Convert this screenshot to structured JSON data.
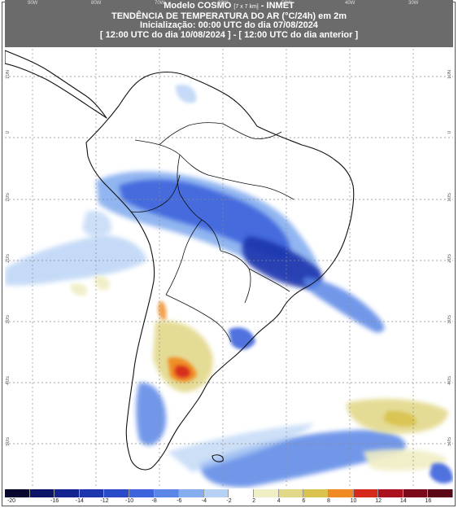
{
  "header": {
    "model": "Modelo COSMO",
    "resolution": "[7 x 7 km]",
    "agency": " - INMET",
    "title": "TENDÊNCIA DE TEMPERATURA DO AR (°C/24h) em 2m",
    "init": "Inicialização: 00:00 UTC do dia 07/08/2024",
    "period": "[ 12:00 UTC do dia 10/08/2024 ] - [ 12:00 UTC do dia anterior ]"
  },
  "lon_labels": [
    "90W",
    "80W",
    "70W",
    "60W",
    "50W",
    "40W",
    "30W"
  ],
  "lat_labels": [
    "10N",
    "0",
    "10S",
    "20S",
    "30S",
    "40S",
    "50S"
  ],
  "colorbar": {
    "labels": [
      "-20",
      "-16",
      "-14",
      "-12",
      "-10",
      "-8",
      "-6",
      "-4",
      "-2",
      "2",
      "4",
      "6",
      "8",
      "10",
      "12",
      "14",
      "16"
    ],
    "colors": [
      "#08082e",
      "#0b1466",
      "#13238f",
      "#1e36ad",
      "#2a4bc8",
      "#3d64dc",
      "#5a86e6",
      "#86aeef",
      "#b7d2f5",
      "#ffffff",
      "#f0eec4",
      "#e2d88a",
      "#d9c24d",
      "#f08a22",
      "#d62b1a",
      "#aa101e",
      "#7a0a1a",
      "#5a0616"
    ]
  }
}
